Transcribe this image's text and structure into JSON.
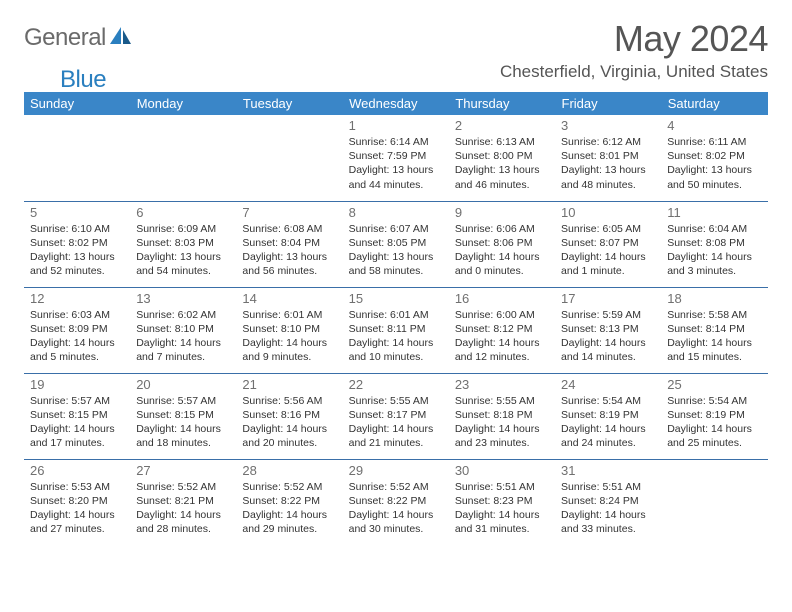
{
  "brand": {
    "part1": "General",
    "part2": "Blue"
  },
  "title": "May 2024",
  "location": "Chesterfield, Virginia, United States",
  "colors": {
    "header_bg": "#3a86c8",
    "border": "#3a6fa8",
    "brand_blue": "#2a7fbf",
    "brand_gray": "#6a6a6a"
  },
  "dayHeaders": [
    "Sunday",
    "Monday",
    "Tuesday",
    "Wednesday",
    "Thursday",
    "Friday",
    "Saturday"
  ],
  "weeks": [
    [
      {
        "n": "",
        "sr": "",
        "ss": "",
        "dl": ""
      },
      {
        "n": "",
        "sr": "",
        "ss": "",
        "dl": ""
      },
      {
        "n": "",
        "sr": "",
        "ss": "",
        "dl": ""
      },
      {
        "n": "1",
        "sr": "Sunrise: 6:14 AM",
        "ss": "Sunset: 7:59 PM",
        "dl": "Daylight: 13 hours and 44 minutes."
      },
      {
        "n": "2",
        "sr": "Sunrise: 6:13 AM",
        "ss": "Sunset: 8:00 PM",
        "dl": "Daylight: 13 hours and 46 minutes."
      },
      {
        "n": "3",
        "sr": "Sunrise: 6:12 AM",
        "ss": "Sunset: 8:01 PM",
        "dl": "Daylight: 13 hours and 48 minutes."
      },
      {
        "n": "4",
        "sr": "Sunrise: 6:11 AM",
        "ss": "Sunset: 8:02 PM",
        "dl": "Daylight: 13 hours and 50 minutes."
      }
    ],
    [
      {
        "n": "5",
        "sr": "Sunrise: 6:10 AM",
        "ss": "Sunset: 8:02 PM",
        "dl": "Daylight: 13 hours and 52 minutes."
      },
      {
        "n": "6",
        "sr": "Sunrise: 6:09 AM",
        "ss": "Sunset: 8:03 PM",
        "dl": "Daylight: 13 hours and 54 minutes."
      },
      {
        "n": "7",
        "sr": "Sunrise: 6:08 AM",
        "ss": "Sunset: 8:04 PM",
        "dl": "Daylight: 13 hours and 56 minutes."
      },
      {
        "n": "8",
        "sr": "Sunrise: 6:07 AM",
        "ss": "Sunset: 8:05 PM",
        "dl": "Daylight: 13 hours and 58 minutes."
      },
      {
        "n": "9",
        "sr": "Sunrise: 6:06 AM",
        "ss": "Sunset: 8:06 PM",
        "dl": "Daylight: 14 hours and 0 minutes."
      },
      {
        "n": "10",
        "sr": "Sunrise: 6:05 AM",
        "ss": "Sunset: 8:07 PM",
        "dl": "Daylight: 14 hours and 1 minute."
      },
      {
        "n": "11",
        "sr": "Sunrise: 6:04 AM",
        "ss": "Sunset: 8:08 PM",
        "dl": "Daylight: 14 hours and 3 minutes."
      }
    ],
    [
      {
        "n": "12",
        "sr": "Sunrise: 6:03 AM",
        "ss": "Sunset: 8:09 PM",
        "dl": "Daylight: 14 hours and 5 minutes."
      },
      {
        "n": "13",
        "sr": "Sunrise: 6:02 AM",
        "ss": "Sunset: 8:10 PM",
        "dl": "Daylight: 14 hours and 7 minutes."
      },
      {
        "n": "14",
        "sr": "Sunrise: 6:01 AM",
        "ss": "Sunset: 8:10 PM",
        "dl": "Daylight: 14 hours and 9 minutes."
      },
      {
        "n": "15",
        "sr": "Sunrise: 6:01 AM",
        "ss": "Sunset: 8:11 PM",
        "dl": "Daylight: 14 hours and 10 minutes."
      },
      {
        "n": "16",
        "sr": "Sunrise: 6:00 AM",
        "ss": "Sunset: 8:12 PM",
        "dl": "Daylight: 14 hours and 12 minutes."
      },
      {
        "n": "17",
        "sr": "Sunrise: 5:59 AM",
        "ss": "Sunset: 8:13 PM",
        "dl": "Daylight: 14 hours and 14 minutes."
      },
      {
        "n": "18",
        "sr": "Sunrise: 5:58 AM",
        "ss": "Sunset: 8:14 PM",
        "dl": "Daylight: 14 hours and 15 minutes."
      }
    ],
    [
      {
        "n": "19",
        "sr": "Sunrise: 5:57 AM",
        "ss": "Sunset: 8:15 PM",
        "dl": "Daylight: 14 hours and 17 minutes."
      },
      {
        "n": "20",
        "sr": "Sunrise: 5:57 AM",
        "ss": "Sunset: 8:15 PM",
        "dl": "Daylight: 14 hours and 18 minutes."
      },
      {
        "n": "21",
        "sr": "Sunrise: 5:56 AM",
        "ss": "Sunset: 8:16 PM",
        "dl": "Daylight: 14 hours and 20 minutes."
      },
      {
        "n": "22",
        "sr": "Sunrise: 5:55 AM",
        "ss": "Sunset: 8:17 PM",
        "dl": "Daylight: 14 hours and 21 minutes."
      },
      {
        "n": "23",
        "sr": "Sunrise: 5:55 AM",
        "ss": "Sunset: 8:18 PM",
        "dl": "Daylight: 14 hours and 23 minutes."
      },
      {
        "n": "24",
        "sr": "Sunrise: 5:54 AM",
        "ss": "Sunset: 8:19 PM",
        "dl": "Daylight: 14 hours and 24 minutes."
      },
      {
        "n": "25",
        "sr": "Sunrise: 5:54 AM",
        "ss": "Sunset: 8:19 PM",
        "dl": "Daylight: 14 hours and 25 minutes."
      }
    ],
    [
      {
        "n": "26",
        "sr": "Sunrise: 5:53 AM",
        "ss": "Sunset: 8:20 PM",
        "dl": "Daylight: 14 hours and 27 minutes."
      },
      {
        "n": "27",
        "sr": "Sunrise: 5:52 AM",
        "ss": "Sunset: 8:21 PM",
        "dl": "Daylight: 14 hours and 28 minutes."
      },
      {
        "n": "28",
        "sr": "Sunrise: 5:52 AM",
        "ss": "Sunset: 8:22 PM",
        "dl": "Daylight: 14 hours and 29 minutes."
      },
      {
        "n": "29",
        "sr": "Sunrise: 5:52 AM",
        "ss": "Sunset: 8:22 PM",
        "dl": "Daylight: 14 hours and 30 minutes."
      },
      {
        "n": "30",
        "sr": "Sunrise: 5:51 AM",
        "ss": "Sunset: 8:23 PM",
        "dl": "Daylight: 14 hours and 31 minutes."
      },
      {
        "n": "31",
        "sr": "Sunrise: 5:51 AM",
        "ss": "Sunset: 8:24 PM",
        "dl": "Daylight: 14 hours and 33 minutes."
      },
      {
        "n": "",
        "sr": "",
        "ss": "",
        "dl": ""
      }
    ]
  ]
}
